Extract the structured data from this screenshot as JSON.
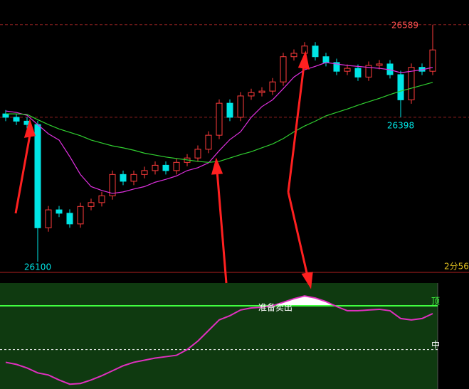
{
  "chart_data": [
    {
      "type": "candlestick",
      "ylim": [
        26078,
        26640
      ],
      "up_color": "#ff3c3c",
      "down_color": "#00e6e6",
      "open": [
        26405,
        26398,
        26390,
        26383,
        26170,
        26207,
        26200,
        26178,
        26214,
        26222,
        26236,
        26280,
        26266,
        26280,
        26288,
        26299,
        26288,
        26305,
        26314,
        26332,
        26361,
        26427,
        26398,
        26442,
        26449,
        26452,
        26471,
        26523,
        26530,
        26545,
        26523,
        26511,
        26493,
        26499,
        26481,
        26505,
        26508,
        26486,
        26434,
        26501,
        26493
      ],
      "high": [
        26413,
        26406,
        26398,
        26391,
        26215,
        26215,
        26208,
        26222,
        26230,
        26244,
        26288,
        26288,
        26288,
        26296,
        26307,
        26307,
        26313,
        26322,
        26340,
        26369,
        26435,
        26435,
        26450,
        26457,
        26460,
        26479,
        26531,
        26538,
        26553,
        26553,
        26531,
        26519,
        26507,
        26507,
        26513,
        26516,
        26516,
        26494,
        26509,
        26509,
        26589
      ],
      "low": [
        26390,
        26382,
        26375,
        26100,
        26162,
        26192,
        26170,
        26170,
        26206,
        26214,
        26228,
        26258,
        26258,
        26272,
        26280,
        26280,
        26280,
        26297,
        26306,
        26324,
        26353,
        26390,
        26390,
        26434,
        26441,
        26444,
        26463,
        26515,
        26522,
        26515,
        26503,
        26485,
        26485,
        26473,
        26473,
        26497,
        26478,
        26398,
        26426,
        26485,
        26485
      ],
      "close": [
        26398,
        26390,
        26383,
        26170,
        26207,
        26200,
        26178,
        26214,
        26222,
        26236,
        26280,
        26266,
        26280,
        26288,
        26299,
        26288,
        26305,
        26314,
        26332,
        26361,
        26427,
        26398,
        26442,
        26449,
        26452,
        26471,
        26523,
        26530,
        26545,
        26523,
        26511,
        26493,
        26499,
        26481,
        26505,
        26508,
        26486,
        26434,
        26501,
        26493,
        26537
      ],
      "ma": [
        {
          "color": "#e030e0",
          "values": [
            26411,
            26408,
            26402,
            26383,
            26364,
            26351,
            26317,
            26280,
            26255,
            26247,
            26241,
            26244,
            26250,
            26255,
            26264,
            26270,
            26277,
            26288,
            26294,
            26304,
            26329,
            26352,
            26368,
            26398,
            26420,
            26434,
            26457,
            26481,
            26496,
            26503,
            26511,
            26508,
            26505,
            26503,
            26501,
            26499,
            26496,
            26490,
            26493,
            26496,
            26501
          ]
        },
        {
          "color": "#30d030",
          "values": [
            26405,
            26405,
            26404,
            26393,
            26383,
            26374,
            26367,
            26360,
            26351,
            26345,
            26339,
            26335,
            26330,
            26324,
            26320,
            26316,
            26313,
            26310,
            26307,
            26305,
            26307,
            26314,
            26321,
            26327,
            26335,
            26343,
            26354,
            26368,
            26380,
            26390,
            26401,
            26408,
            26415,
            26423,
            26430,
            26437,
            26445,
            26452,
            26458,
            26464,
            26470
          ]
        }
      ],
      "period_label": "2分56"
    },
    {
      "type": "line",
      "ylim": [
        5,
        126
      ],
      "color": "#e030c0",
      "values": [
        35.5,
        33.1,
        29.0,
        23.4,
        21.0,
        15.3,
        10.5,
        11.3,
        15.3,
        20.2,
        25.8,
        31.5,
        35.5,
        37.9,
        40.3,
        41.9,
        43.5,
        50,
        59.7,
        71.8,
        83.9,
        88.7,
        95.2,
        97.6,
        98.4,
        100,
        104,
        108.1,
        111.3,
        108.9,
        104.8,
        99.2,
        94.4,
        94.4,
        95.2,
        96,
        94.4,
        85.5,
        83.9,
        85.5,
        91.1
      ],
      "levels": [
        {
          "value": 100,
          "label": "顶",
          "color": "#40ff40"
        },
        {
          "value": 50,
          "label": "中",
          "color": "#ffffff"
        }
      ],
      "annotation": "准备卖出"
    }
  ]
}
